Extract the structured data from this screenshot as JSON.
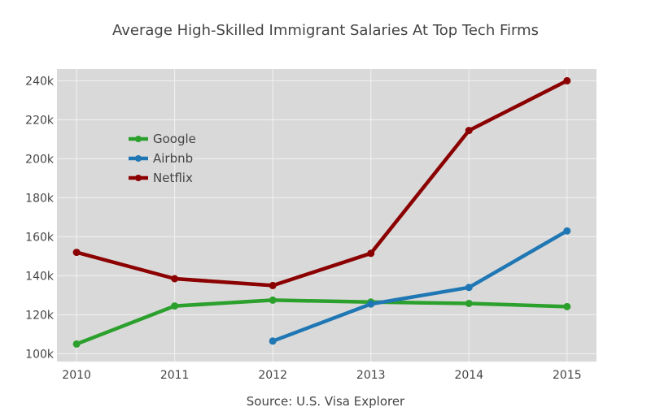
{
  "chart_data": {
    "type": "line",
    "title": "Average High-Skilled Immigrant Salaries At Top Tech Firms",
    "xlabel": "Source: U.S. Visa Explorer",
    "ylabel": "",
    "x": [
      2010,
      2011,
      2012,
      2013,
      2014,
      2015
    ],
    "x_tick_labels": [
      "2010",
      "2011",
      "2012",
      "2013",
      "2014",
      "2015"
    ],
    "y_tick_values": [
      100000,
      120000,
      140000,
      160000,
      180000,
      200000,
      220000,
      240000
    ],
    "y_tick_labels": [
      "100k",
      "120k",
      "140k",
      "160k",
      "180k",
      "200k",
      "220k",
      "240k"
    ],
    "xlim": [
      2009.8,
      2015.3
    ],
    "ylim": [
      96000,
      246000
    ],
    "grid": true,
    "legend_position": "top-left",
    "series": [
      {
        "name": "Google",
        "color": "#2ca02c",
        "values": [
          105000,
          124500,
          127500,
          126500,
          125800,
          124200
        ]
      },
      {
        "name": "Airbnb",
        "color": "#1f77b4",
        "values": [
          null,
          null,
          106500,
          125500,
          134000,
          163000
        ]
      },
      {
        "name": "Netflix",
        "color": "#8b0000",
        "values": [
          152000,
          138500,
          135000,
          151500,
          214500,
          240000
        ]
      }
    ]
  },
  "colors": {
    "plot_background": "#d9d9d9",
    "grid": "#f2f2f2",
    "text": "#444444"
  }
}
